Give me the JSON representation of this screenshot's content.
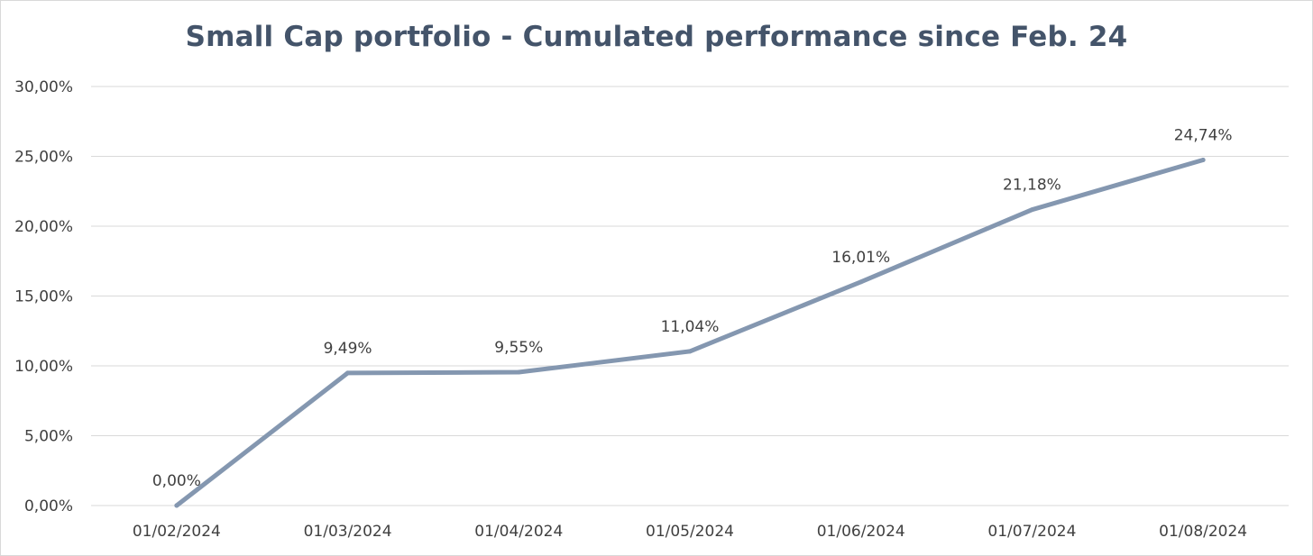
{
  "chart_data": {
    "type": "line",
    "title": "Small Cap portfolio - Cumulated performance since Feb. 24",
    "xlabel": "",
    "ylabel": "",
    "categories": [
      "01/02/2024",
      "01/03/2024",
      "01/04/2024",
      "01/05/2024",
      "01/06/2024",
      "01/07/2024",
      "01/08/2024"
    ],
    "series": [
      {
        "values": [
          0.0,
          9.49,
          9.55,
          11.04,
          16.01,
          21.18,
          24.74
        ],
        "labels": [
          "0,00%",
          "9,49%",
          "9,55%",
          "11,04%",
          "16,01%",
          "21,18%",
          "24,74%"
        ],
        "color": "#8497b0"
      }
    ],
    "ylim": [
      0,
      30
    ],
    "yticks": [
      0,
      5,
      10,
      15,
      20,
      25,
      30
    ],
    "ytick_labels": [
      "0,00%",
      "5,00%",
      "10,00%",
      "15,00%",
      "20,00%",
      "25,00%",
      "30,00%"
    ],
    "grid": true,
    "legend": "none"
  }
}
